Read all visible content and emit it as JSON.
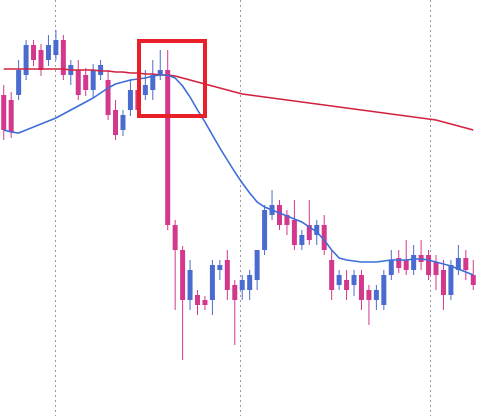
{
  "chart_data": {
    "type": "candlestick",
    "open": [
      321,
      316,
      321,
      341,
      371,
      366,
      356,
      361,
      376,
      341,
      346,
      341,
      326,
      341,
      336,
      306,
      286,
      306,
      326,
      321,
      326,
      341,
      346,
      191,
      166,
      116,
      121,
      116,
      116,
      146,
      156,
      131,
      126,
      126,
      136,
      166,
      201,
      211,
      201,
      196,
      171,
      191,
      181,
      191,
      156,
      131,
      136,
      131,
      141,
      126,
      116,
      111,
      141,
      158,
      156,
      146,
      161,
      161,
      154,
      146,
      121,
      146,
      158,
      141
    ],
    "high": [
      331,
      324,
      356,
      376,
      376,
      372,
      381,
      386,
      381,
      356,
      356,
      348,
      352,
      356,
      346,
      316,
      306,
      336,
      336,
      346,
      356,
      366,
      366,
      196,
      170,
      156,
      126,
      120,
      156,
      156,
      166,
      136,
      141,
      146,
      166,
      211,
      226,
      216,
      206,
      216,
      186,
      216,
      196,
      201,
      166,
      146,
      146,
      146,
      146,
      131,
      131,
      146,
      166,
      166,
      176,
      171,
      176,
      166,
      161,
      156,
      156,
      171,
      166,
      156
    ],
    "low": [
      276,
      278,
      316,
      336,
      350,
      340,
      350,
      356,
      336,
      331,
      316,
      320,
      318,
      336,
      296,
      276,
      280,
      300,
      300,
      316,
      316,
      336,
      186,
      106,
      56,
      106,
      101,
      106,
      101,
      136,
      116,
      71,
      116,
      116,
      126,
      161,
      196,
      186,
      181,
      166,
      166,
      171,
      171,
      161,
      116,
      126,
      116,
      120,
      106,
      91,
      106,
      106,
      136,
      143,
      141,
      141,
      146,
      136,
      126,
      106,
      116,
      141,
      136,
      126
    ],
    "close": [
      286,
      284,
      346,
      371,
      356,
      346,
      371,
      376,
      341,
      351,
      321,
      326,
      346,
      351,
      301,
      281,
      301,
      326,
      306,
      331,
      341,
      346,
      191,
      166,
      116,
      146,
      111,
      111,
      151,
      151,
      126,
      116,
      136,
      141,
      166,
      206,
      211,
      191,
      191,
      171,
      181,
      176,
      191,
      166,
      126,
      141,
      126,
      141,
      116,
      116,
      126,
      141,
      156,
      148,
      146,
      161,
      154,
      141,
      141,
      121,
      151,
      158,
      146,
      131
    ],
    "up_color": "#4a6bd0",
    "down_color": "#d4388c",
    "lines": [
      {
        "color": "#d2203f",
        "values": [
          347,
          347,
          347,
          347,
          347,
          347,
          347,
          347,
          347,
          346,
          346,
          346,
          346,
          345,
          345,
          344,
          344,
          343,
          343,
          342,
          342,
          341,
          341,
          340,
          338,
          336,
          334,
          332,
          330,
          328,
          326,
          324,
          322,
          321,
          320,
          319,
          318,
          317,
          316,
          315,
          314,
          313,
          312,
          311,
          310,
          309,
          308,
          307,
          306,
          305,
          304,
          303,
          302,
          301,
          300,
          299,
          298,
          297,
          296,
          294,
          292,
          290,
          288,
          286
        ]
      },
      {
        "color": "#3d6ed8",
        "values": [
          286,
          284,
          283,
          286,
          289,
          292,
          295,
          298,
          302,
          306,
          310,
          314,
          318,
          323,
          328,
          332,
          334,
          336,
          337,
          338,
          340,
          341,
          341,
          338,
          330,
          319,
          306,
          294,
          281,
          268,
          256,
          244,
          233,
          223,
          214,
          209,
          206,
          203,
          200,
          197,
          194,
          189,
          184,
          176,
          166,
          158,
          156,
          155,
          154,
          154,
          154,
          155,
          156,
          156,
          156,
          157,
          157,
          156,
          154,
          152,
          150,
          147,
          144,
          141
        ]
      }
    ],
    "ylim": [
      0,
      416
    ]
  }
}
